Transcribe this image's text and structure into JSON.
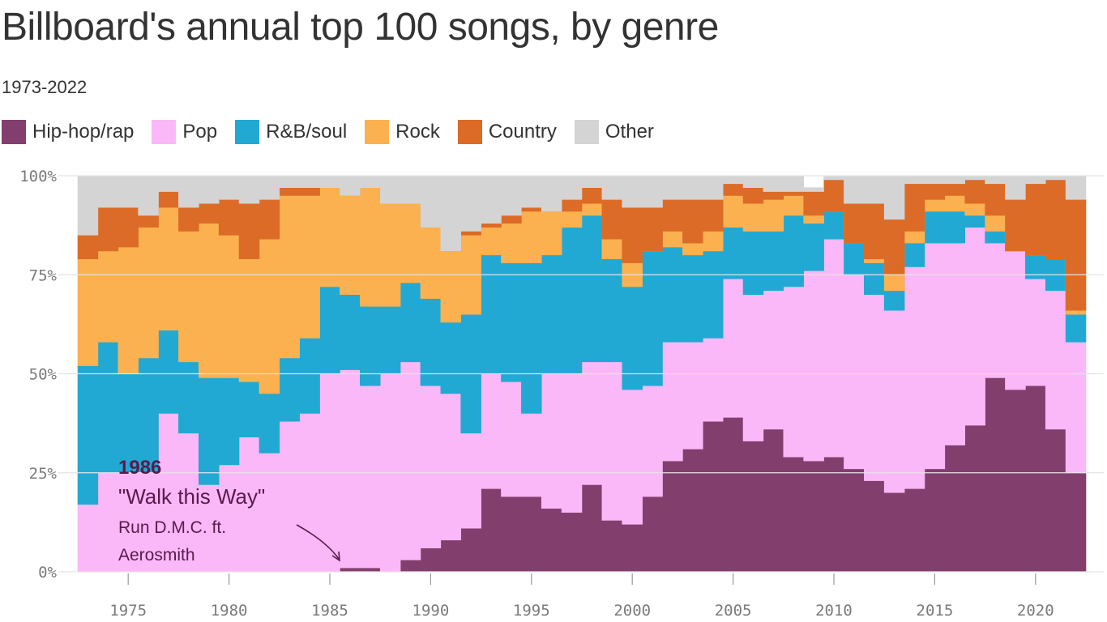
{
  "header": {
    "title": "Billboard's annual top 100 songs, by genre",
    "subtitle": "1973-2022"
  },
  "annotation": {
    "year": "1986",
    "song": "\"Walk this Way\"",
    "artist_line1": "Run D.M.C. ft.",
    "artist_line2": "Aerosmith"
  },
  "chart_data": {
    "type": "area",
    "stacked": true,
    "step": true,
    "x": [
      1973,
      1974,
      1975,
      1976,
      1977,
      1978,
      1979,
      1980,
      1981,
      1982,
      1983,
      1984,
      1985,
      1986,
      1987,
      1988,
      1989,
      1990,
      1991,
      1992,
      1993,
      1994,
      1995,
      1996,
      1997,
      1998,
      1999,
      2000,
      2001,
      2002,
      2003,
      2004,
      2005,
      2006,
      2007,
      2008,
      2009,
      2010,
      2011,
      2012,
      2013,
      2014,
      2015,
      2016,
      2017,
      2018,
      2019,
      2020,
      2021,
      2022
    ],
    "ylim": [
      0,
      100
    ],
    "yticks": [
      "0%",
      "25%",
      "50%",
      "75%",
      "100%"
    ],
    "xticks": [
      1975,
      1980,
      1985,
      1990,
      1995,
      2000,
      2005,
      2010,
      2015,
      2020
    ],
    "grid": true,
    "legend_position": "top",
    "series": [
      {
        "name": "Hip-hop/rap",
        "color": "#823f6e",
        "values": [
          0,
          0,
          0,
          0,
          0,
          0,
          0,
          0,
          0,
          0,
          0,
          0,
          0,
          1,
          1,
          0,
          3,
          6,
          8,
          11,
          21,
          19,
          19,
          16,
          15,
          22,
          13,
          12,
          19,
          28,
          31,
          38,
          39,
          33,
          36,
          29,
          28,
          29,
          26,
          23,
          20,
          21,
          26,
          32,
          37,
          49,
          46,
          47,
          36,
          25
        ]
      },
      {
        "name": "Pop",
        "color": "#fbb8f8",
        "values": [
          17,
          25,
          25,
          25,
          40,
          35,
          22,
          27,
          34,
          30,
          38,
          40,
          50,
          50,
          46,
          50,
          50,
          41,
          37,
          24,
          29,
          29,
          21,
          34,
          35,
          31,
          40,
          34,
          28,
          30,
          27,
          21,
          35,
          37,
          35,
          43,
          48,
          55,
          49,
          47,
          46,
          56,
          57,
          51,
          50,
          34,
          35,
          27,
          35,
          33
        ]
      },
      {
        "name": "R&B/soul",
        "color": "#21a9d3",
        "values": [
          35,
          33,
          25,
          29,
          21,
          18,
          27,
          22,
          14,
          15,
          16,
          19,
          22,
          19,
          20,
          17,
          20,
          22,
          18,
          30,
          30,
          30,
          38,
          30,
          37,
          37,
          26,
          26,
          34,
          24,
          22,
          22,
          13,
          16,
          15,
          18,
          12,
          7,
          8,
          8,
          5,
          6,
          8,
          8,
          3,
          3,
          0,
          6,
          8,
          7
        ]
      },
      {
        "name": "Rock",
        "color": "#fbb14f",
        "values": [
          27,
          23,
          32,
          33,
          31,
          33,
          39,
          36,
          31,
          39,
          41,
          36,
          25,
          25,
          30,
          26,
          20,
          18,
          18,
          20,
          7,
          10,
          13,
          11,
          4,
          3,
          5,
          6,
          0,
          4,
          3,
          5,
          8,
          7,
          8,
          5,
          2,
          0,
          0,
          1,
          4,
          3,
          3,
          4,
          3,
          4,
          0,
          0,
          0,
          1
        ]
      },
      {
        "name": "Country",
        "color": "#dc6b27",
        "values": [
          6,
          11,
          10,
          3,
          4,
          6,
          5,
          9,
          14,
          10,
          2,
          2,
          0,
          0,
          0,
          0,
          0,
          0,
          0,
          1,
          1,
          2,
          1,
          0,
          3,
          4,
          10,
          14,
          11,
          8,
          11,
          8,
          3,
          4,
          2,
          1,
          6,
          8,
          10,
          14,
          14,
          12,
          4,
          3,
          6,
          8,
          13,
          18,
          20,
          28
        ]
      },
      {
        "name": "Other",
        "color": "#d4d4d4",
        "values": [
          15,
          8,
          8,
          10,
          4,
          8,
          7,
          6,
          7,
          6,
          3,
          3,
          3,
          5,
          3,
          7,
          7,
          13,
          19,
          14,
          12,
          10,
          8,
          9,
          6,
          3,
          6,
          8,
          8,
          6,
          6,
          6,
          2,
          3,
          4,
          4,
          1,
          1,
          7,
          7,
          11,
          2,
          2,
          2,
          1,
          2,
          6,
          2,
          1,
          6
        ]
      }
    ]
  }
}
